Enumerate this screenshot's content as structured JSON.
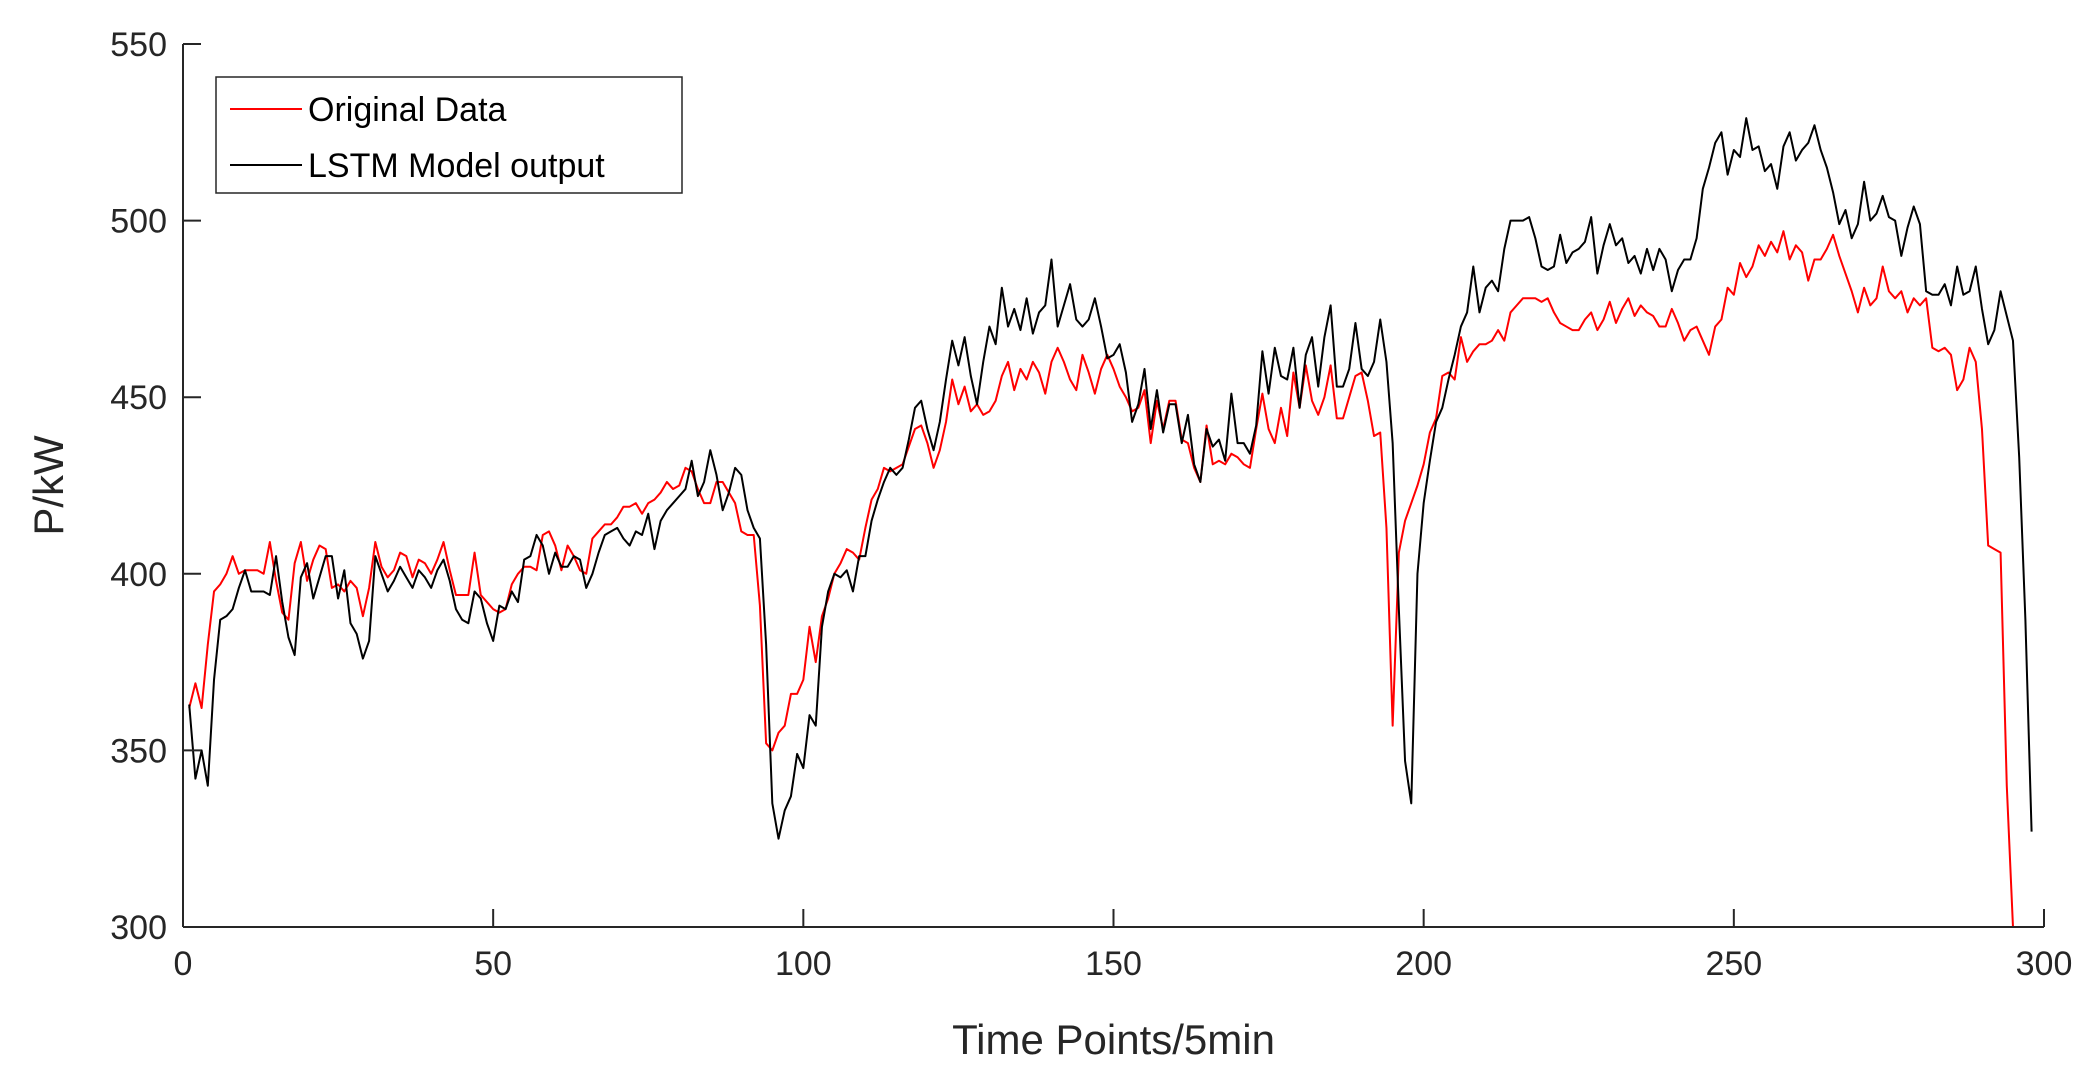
{
  "chart_data": {
    "type": "line",
    "title": "",
    "xlabel": "Time Points/5min",
    "ylabel": "P/kW",
    "xlim": [
      0,
      300
    ],
    "ylim": [
      300,
      550
    ],
    "xticks": [
      0,
      50,
      100,
      150,
      200,
      250,
      300
    ],
    "yticks": [
      300,
      350,
      400,
      450,
      500,
      550
    ],
    "xtick_labels": [
      "0",
      "50",
      "100",
      "150",
      "200",
      "250",
      "300"
    ],
    "ytick_labels": [
      "300",
      "350",
      "400",
      "450",
      "500",
      "550"
    ],
    "grid": false,
    "legend_position": "top-left",
    "x_start": 1,
    "series": [
      {
        "name": "Original Data",
        "color": "#ff0000",
        "values": [
          362,
          369,
          362,
          380,
          395,
          397,
          400,
          405,
          400,
          401,
          401,
          401,
          400,
          409,
          398,
          389,
          387,
          403,
          409,
          398,
          404,
          408,
          407,
          396,
          397,
          395,
          398,
          396,
          388,
          396,
          409,
          402,
          399,
          401,
          406,
          405,
          399,
          404,
          403,
          400,
          404,
          409,
          401,
          394,
          394,
          394,
          406,
          394,
          392,
          390,
          389,
          390,
          397,
          400,
          402,
          402,
          401,
          411,
          412,
          408,
          401,
          408,
          405,
          401,
          400,
          410,
          412,
          414,
          414,
          416,
          419,
          419,
          420,
          417,
          420,
          421,
          423,
          426,
          424,
          425,
          430,
          429,
          424,
          420,
          420,
          426,
          426,
          423,
          420,
          412,
          411,
          411,
          391,
          352,
          350,
          355,
          357,
          366,
          366,
          370,
          385,
          375,
          388,
          393,
          400,
          403,
          407,
          406,
          404,
          413,
          421,
          424,
          430,
          429,
          430,
          431,
          436,
          441,
          442,
          437,
          430,
          435,
          443,
          455,
          448,
          453,
          446,
          448,
          445,
          446,
          449,
          456,
          460,
          452,
          458,
          455,
          460,
          457,
          451,
          460,
          464,
          460,
          455,
          452,
          462,
          457,
          451,
          458,
          462,
          458,
          453,
          450,
          446,
          447,
          452,
          437,
          449,
          441,
          449,
          449,
          438,
          437,
          430,
          426,
          442,
          431,
          432,
          431,
          434,
          433,
          431,
          430,
          441,
          451,
          441,
          437,
          447,
          439,
          457,
          447,
          459,
          449,
          445,
          450,
          459,
          444,
          444,
          450,
          456,
          457,
          449,
          439,
          440,
          413,
          357,
          406,
          415,
          420,
          425,
          431,
          440,
          444,
          456,
          457,
          455,
          467,
          460,
          463,
          465,
          465,
          466,
          469,
          466,
          474,
          476,
          478,
          478,
          478,
          477,
          478,
          474,
          471,
          470,
          469,
          469,
          472,
          474,
          469,
          472,
          477,
          471,
          475,
          478,
          473,
          476,
          474,
          473,
          470,
          470,
          475,
          471,
          466,
          469,
          470,
          466,
          462,
          470,
          472,
          481,
          479,
          488,
          484,
          487,
          493,
          490,
          494,
          491,
          497,
          489,
          493,
          491,
          483,
          489,
          489,
          492,
          496,
          490,
          485,
          480,
          474,
          481,
          476,
          478,
          487,
          480,
          478,
          480,
          474,
          478,
          476,
          478,
          464,
          463,
          464,
          462,
          452,
          455,
          464,
          460,
          441,
          408,
          407,
          406,
          340,
          300
        ]
      },
      {
        "name": "LSTM Model output",
        "color": "#000000",
        "values": [
          363,
          342,
          350,
          340,
          370,
          387,
          388,
          390,
          396,
          401,
          395,
          395,
          395,
          394,
          405,
          392,
          382,
          377,
          399,
          403,
          393,
          399,
          405,
          405,
          393,
          401,
          386,
          383,
          376,
          381,
          405,
          400,
          395,
          398,
          402,
          399,
          396,
          401,
          399,
          396,
          401,
          404,
          398,
          390,
          387,
          386,
          395,
          393,
          386,
          381,
          391,
          390,
          395,
          392,
          404,
          405,
          411,
          408,
          400,
          406,
          402,
          402,
          405,
          404,
          396,
          400,
          406,
          411,
          412,
          413,
          410,
          408,
          412,
          411,
          417,
          407,
          415,
          418,
          420,
          422,
          424,
          432,
          422,
          426,
          435,
          428,
          418,
          423,
          430,
          428,
          418,
          413,
          410,
          380,
          335,
          325,
          333,
          337,
          349,
          345,
          360,
          357,
          385,
          395,
          400,
          399,
          401,
          395,
          405,
          405,
          415,
          421,
          426,
          430,
          428,
          430,
          438,
          447,
          449,
          441,
          435,
          443,
          455,
          466,
          459,
          467,
          456,
          448,
          460,
          470,
          465,
          481,
          470,
          475,
          469,
          478,
          468,
          474,
          476,
          489,
          470,
          476,
          482,
          472,
          470,
          472,
          478,
          470,
          461,
          462,
          465,
          457,
          443,
          448,
          458,
          441,
          452,
          440,
          448,
          448,
          437,
          445,
          431,
          426,
          441,
          436,
          438,
          432,
          451,
          437,
          437,
          434,
          442,
          463,
          451,
          464,
          456,
          455,
          464,
          447,
          462,
          467,
          453,
          467,
          476,
          453,
          453,
          458,
          471,
          458,
          456,
          460,
          472,
          460,
          437,
          390,
          347,
          335,
          400,
          420,
          432,
          443,
          447,
          455,
          462,
          470,
          474,
          487,
          474,
          481,
          483,
          480,
          492,
          500,
          500,
          500,
          501,
          495,
          487,
          486,
          487,
          496,
          488,
          491,
          492,
          494,
          501,
          485,
          493,
          499,
          493,
          495,
          488,
          490,
          485,
          492,
          486,
          492,
          489,
          480,
          486,
          489,
          489,
          495,
          509,
          515,
          522,
          525,
          513,
          520,
          518,
          529,
          520,
          521,
          514,
          516,
          509,
          521,
          525,
          517,
          520,
          522,
          527,
          520,
          515,
          508,
          499,
          503,
          495,
          499,
          511,
          500,
          502,
          507,
          501,
          500,
          490,
          498,
          504,
          499,
          480,
          479,
          479,
          482,
          476,
          487,
          479,
          480,
          487,
          475,
          465,
          469,
          480,
          473,
          466,
          433,
          387,
          327
        ]
      }
    ]
  }
}
